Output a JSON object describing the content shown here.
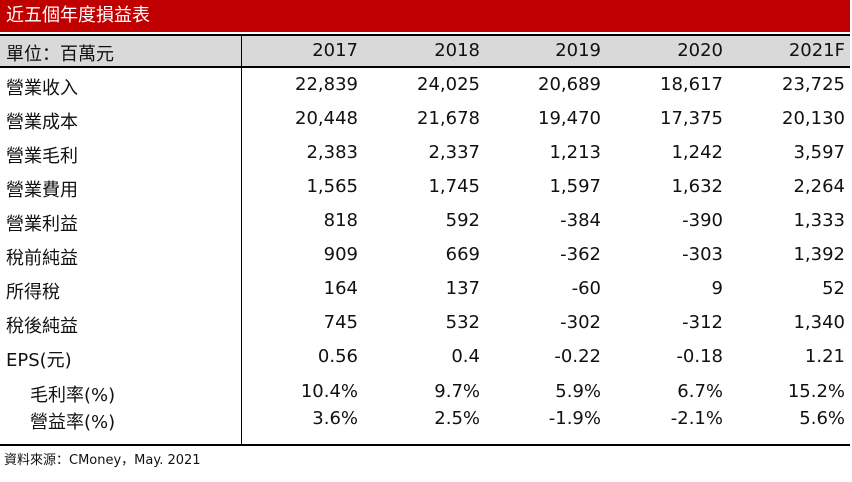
{
  "title": "近五個年度損益表",
  "header": {
    "unit_label": "單位：百萬元",
    "years": [
      "2017",
      "2018",
      "2019",
      "2020",
      "2021F"
    ]
  },
  "rows": [
    {
      "label": "營業收入",
      "values": [
        "22,839",
        "24,025",
        "20,689",
        "18,617",
        "23,725"
      ]
    },
    {
      "label": "營業成本",
      "values": [
        "20,448",
        "21,678",
        "19,470",
        "17,375",
        "20,130"
      ]
    },
    {
      "label": "營業毛利",
      "values": [
        "2,383",
        "2,337",
        "1,213",
        "1,242",
        "3,597"
      ]
    },
    {
      "label": "營業費用",
      "values": [
        "1,565",
        "1,745",
        "1,597",
        "1,632",
        "2,264"
      ]
    },
    {
      "label": "營業利益",
      "values": [
        "818",
        "592",
        "-384",
        "-390",
        "1,333"
      ]
    },
    {
      "label": "稅前純益",
      "values": [
        "909",
        "669",
        "-362",
        "-303",
        "1,392"
      ]
    },
    {
      "label": "所得稅",
      "values": [
        "164",
        "137",
        "-60",
        "9",
        "52"
      ]
    },
    {
      "label": "稅後純益",
      "values": [
        "745",
        "532",
        "-302",
        "-312",
        "1,340"
      ]
    },
    {
      "label": "EPS(元)",
      "values": [
        "0.56",
        "0.4",
        "-0.22",
        "-0.18",
        "1.21"
      ]
    },
    {
      "label": "毛利率(%)",
      "values": [
        "10.4%",
        "9.7%",
        "5.9%",
        "6.7%",
        "15.2%"
      ]
    },
    {
      "label": "營益率(%)",
      "values": [
        "3.6%",
        "2.5%",
        "-1.9%",
        "-2.1%",
        "5.6%"
      ]
    }
  ],
  "source": "資料來源：CMoney，May. 2021"
}
